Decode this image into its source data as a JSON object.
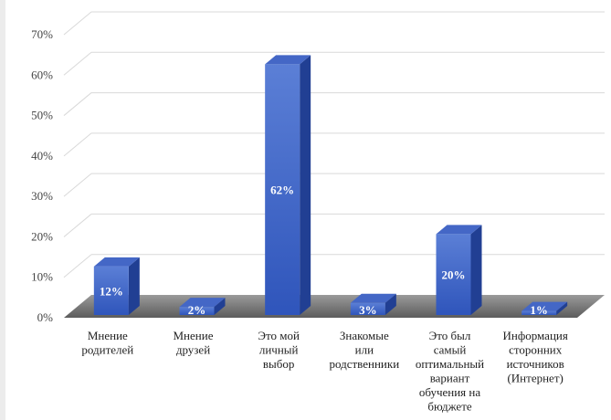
{
  "chart_data": {
    "type": "bar",
    "style": "3d-column",
    "categories": [
      [
        "Мнение",
        "родителей"
      ],
      [
        "Мнение",
        "друзей"
      ],
      [
        "Это мой",
        "личный",
        "выбор"
      ],
      [
        "Знакомые",
        "или",
        "родственники"
      ],
      [
        "Это был",
        "самый",
        "оптимальный",
        "вариант",
        "обучения на",
        "бюджете"
      ],
      [
        "Информация",
        "сторонних",
        "источников",
        "(Интернет)"
      ]
    ],
    "values": [
      12,
      2,
      62,
      3,
      20,
      1
    ],
    "data_labels": [
      "12%",
      "2%",
      "62%",
      "3%",
      "20%",
      "1%"
    ],
    "y_ticks": [
      "0%",
      "10%",
      "20%",
      "30%",
      "40%",
      "50%",
      "60%",
      "70%"
    ],
    "ylim": [
      0,
      70
    ],
    "grid": true,
    "legend": "none",
    "colors": {
      "front_top": "#5b7fd6",
      "front_bottom": "#2f55bb",
      "side": "#213f93",
      "top": "#4467c6",
      "floor": "#6d6d6d",
      "grid": "#d9d9d9"
    }
  }
}
